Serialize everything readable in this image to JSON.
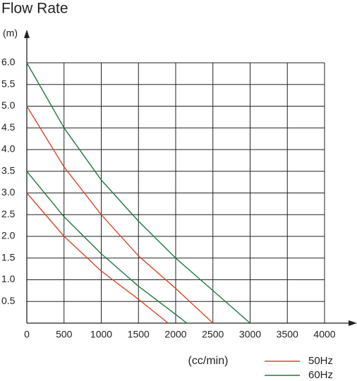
{
  "chart_data": {
    "type": "line",
    "title": "Flow Rate",
    "y_label": "(m)",
    "x_label": "(cc/min)",
    "xlim": [
      0,
      4000
    ],
    "ylim": [
      0,
      6
    ],
    "xticks": [
      0,
      500,
      1000,
      1500,
      2000,
      2500,
      3000,
      3500,
      4000
    ],
    "yticks": [
      0.5,
      {
        "value": 1,
        "label": "1.0"
      },
      1.5,
      {
        "value": 2,
        "label": "2.0"
      },
      2.5,
      {
        "value": 3,
        "label": "3.0"
      },
      3.5,
      {
        "value": 4,
        "label": "4.0"
      },
      4.5,
      {
        "value": 5,
        "label": "5.0"
      },
      5.5,
      {
        "value": 6,
        "label": "6.0"
      }
    ],
    "grid": true,
    "series": [
      {
        "name": "50Hz",
        "color": "#d9472b",
        "lines": [
          {
            "x": [
              0,
              500,
              1000,
              1500,
              1900
            ],
            "values": [
              3.0,
              2.0,
              1.2,
              0.55,
              0
            ]
          },
          {
            "x": [
              0,
              500,
              1000,
              1500,
              2000,
              2500
            ],
            "values": [
              5.0,
              3.6,
              2.5,
              1.55,
              0.8,
              0
            ]
          }
        ]
      },
      {
        "name": "60Hz",
        "color": "#1e7a3c",
        "lines": [
          {
            "x": [
              0,
              500,
              1000,
              1500,
              2000,
              2150
            ],
            "values": [
              3.5,
              2.45,
              1.6,
              0.85,
              0.2,
              0
            ]
          },
          {
            "x": [
              0,
              500,
              1000,
              1500,
              2000,
              2500,
              3000
            ],
            "values": [
              6.0,
              4.5,
              3.3,
              2.35,
              1.5,
              0.75,
              0
            ]
          }
        ]
      }
    ]
  }
}
